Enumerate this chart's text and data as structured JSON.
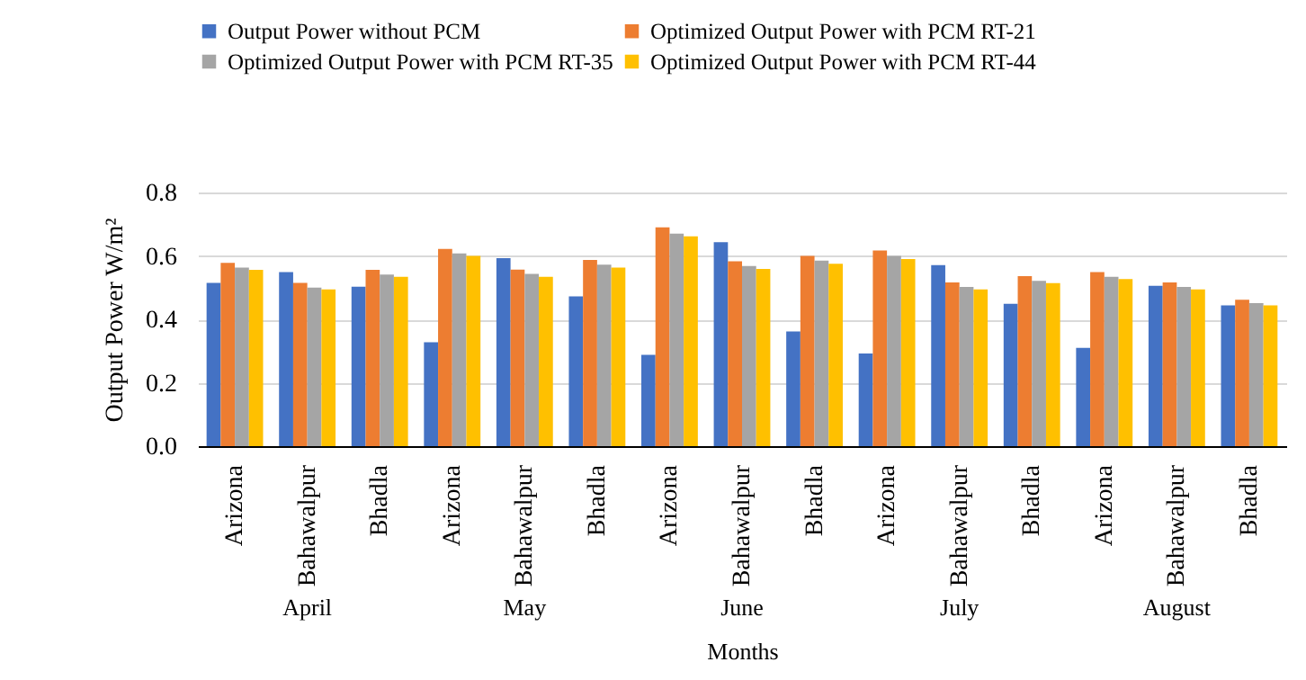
{
  "chart_data": {
    "type": "bar",
    "xlabel": "Months",
    "ylabel": "Output Power  W/m²",
    "categories": [
      "Arizona",
      "Bahawalpur",
      "Bhadla",
      "Arizona",
      "Bahawalpur",
      "Bhadla",
      "Arizona",
      "Bahawalpur",
      "Bhadla",
      "Arizona",
      "Bahawalpur",
      "Bhadla",
      "Arizona",
      "Bahawalpur",
      "Bhadla"
    ],
    "annotations": [
      "April",
      "May",
      "June",
      "July",
      "August"
    ],
    "series": [
      {
        "name": "Output Power without PCM",
        "color": "#4472c4",
        "values": [
          0.515,
          0.549,
          0.503,
          0.328,
          0.593,
          0.472,
          0.288,
          0.643,
          0.362,
          0.292,
          0.571,
          0.449,
          0.31,
          0.506,
          0.444
        ]
      },
      {
        "name": "Optimized Output Power with PCM RT-21",
        "color": "#ed7d31",
        "values": [
          0.578,
          0.515,
          0.556,
          0.622,
          0.557,
          0.587,
          0.69,
          0.583,
          0.6,
          0.617,
          0.516,
          0.536,
          0.549,
          0.516,
          0.462
        ]
      },
      {
        "name": "Optimized Output Power with PCM RT-35",
        "color": "#a5a5a5",
        "values": [
          0.563,
          0.5,
          0.541,
          0.608,
          0.543,
          0.572,
          0.67,
          0.568,
          0.585,
          0.6,
          0.502,
          0.521,
          0.534,
          0.502,
          0.451
        ]
      },
      {
        "name": "Optimized Output Power with PCM RT-44",
        "color": "#ffc000",
        "values": [
          0.556,
          0.494,
          0.534,
          0.6,
          0.534,
          0.563,
          0.662,
          0.559,
          0.575,
          0.59,
          0.494,
          0.514,
          0.527,
          0.494,
          0.444
        ]
      }
    ],
    "ylim": [
      0,
      0.8
    ],
    "yticks": [
      {
        "value": 0,
        "label": "0.0"
      },
      0.2,
      0.4,
      0.6,
      0.8
    ],
    "grid": "y",
    "legend": "top"
  }
}
